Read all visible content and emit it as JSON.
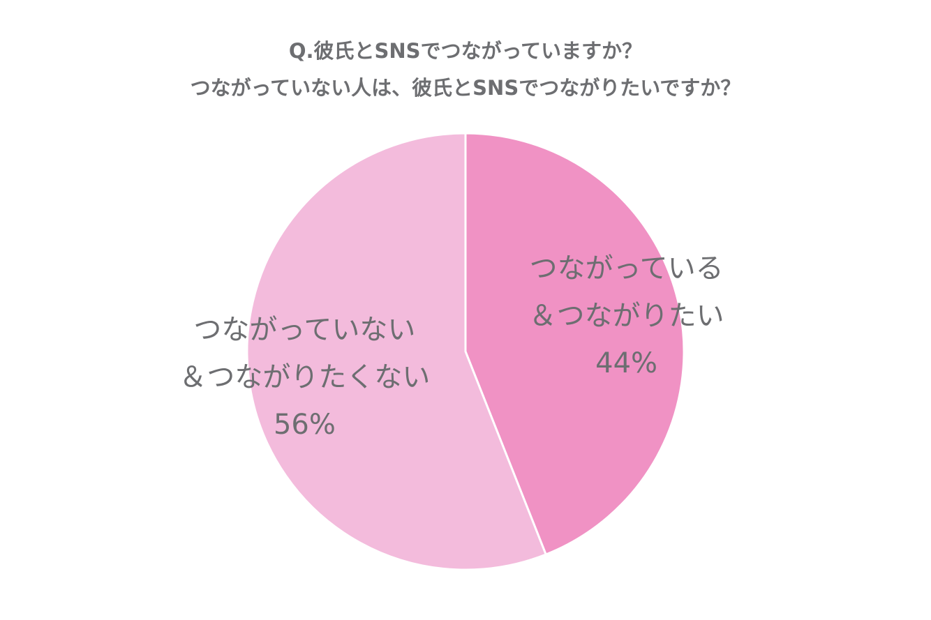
{
  "chart_data": {
    "type": "pie",
    "title": "Q.彼氏とSNSでつながっていますか？",
    "subtitle": "つながっていない人は、彼氏とSNSでつながりたいですか？",
    "categories": [
      [
        "つながっている",
        "＆つながりたい"
      ],
      [
        "つながっていない",
        "＆つながりたくない"
      ]
    ],
    "values": [
      44,
      56
    ],
    "value_labels": [
      "44%",
      "56%"
    ],
    "colors": [
      "#f092c4",
      "#f3bbdc"
    ]
  }
}
